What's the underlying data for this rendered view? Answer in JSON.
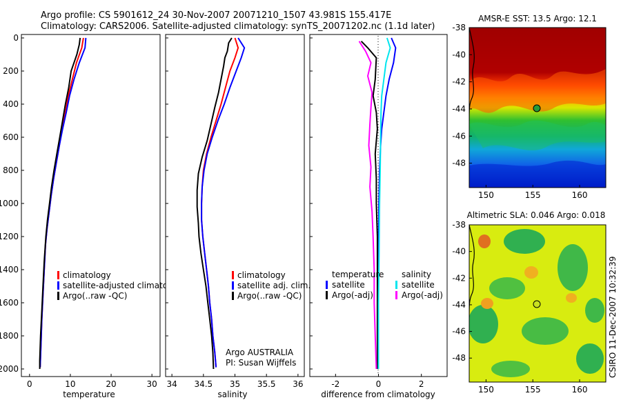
{
  "figure": {
    "title_line1": "Argo profile: CS 5901612_24 30-Nov-2007 20071210_1507 43.981S 155.417E",
    "title_line2": "Climatology: CARS2006. Satellite-adjusted climatology: synTS_20071202.nc (1.1d later)",
    "side_stamp": "CSIRO 11-Dec-2007 10:32:39"
  },
  "colors": {
    "climatology": "#ff0000",
    "satellite": "#0000ff",
    "argo": "#000000",
    "salinity_satellite": "#00e5ee",
    "salinity_argo": "#ff00ff"
  },
  "chart_data": [
    {
      "type": "line",
      "panel": "temperature",
      "xlabel": "temperature",
      "ylabel": "",
      "xlim": [
        -2,
        32
      ],
      "ylim": [
        2050,
        0
      ],
      "xticks": [
        0,
        10,
        20,
        30
      ],
      "yticks": [
        0,
        200,
        400,
        600,
        800,
        1000,
        1200,
        1400,
        1600,
        1800,
        2000
      ],
      "legend": [
        "climatology",
        "satellite-adjusted climatology",
        "Argo(..raw -QC)"
      ],
      "series": [
        {
          "name": "climatology",
          "color": "#ff0000",
          "points": [
            [
              13.2,
              0
            ],
            [
              12.8,
              60
            ],
            [
              11.5,
              150
            ],
            [
              10.5,
              250
            ],
            [
              9.5,
              350
            ],
            [
              8.8,
              450
            ],
            [
              8.0,
              550
            ],
            [
              7.3,
              650
            ],
            [
              6.6,
              750
            ],
            [
              5.9,
              850
            ],
            [
              5.3,
              950
            ],
            [
              4.8,
              1050
            ],
            [
              4.3,
              1150
            ],
            [
              3.9,
              1250
            ],
            [
              3.6,
              1400
            ],
            [
              3.3,
              1550
            ],
            [
              3.0,
              1700
            ],
            [
              2.8,
              1850
            ],
            [
              2.6,
              1990
            ]
          ]
        },
        {
          "name": "satellite-adjusted climatology",
          "color": "#0000ff",
          "points": [
            [
              13.8,
              0
            ],
            [
              13.6,
              60
            ],
            [
              12.2,
              150
            ],
            [
              10.9,
              250
            ],
            [
              9.8,
              350
            ],
            [
              9.0,
              450
            ],
            [
              8.1,
              550
            ],
            [
              7.3,
              650
            ],
            [
              6.6,
              750
            ],
            [
              5.9,
              850
            ],
            [
              5.3,
              950
            ],
            [
              4.8,
              1050
            ],
            [
              4.3,
              1150
            ],
            [
              3.9,
              1250
            ],
            [
              3.6,
              1400
            ],
            [
              3.3,
              1550
            ],
            [
              3.0,
              1700
            ],
            [
              2.8,
              1850
            ],
            [
              2.6,
              1990
            ]
          ]
        },
        {
          "name": "Argo(..raw -QC)",
          "color": "#000000",
          "points": [
            [
              12.4,
              0
            ],
            [
              12.2,
              40
            ],
            [
              11.6,
              100
            ],
            [
              10.2,
              200
            ],
            [
              9.6,
              300
            ],
            [
              8.8,
              400
            ],
            [
              8.1,
              500
            ],
            [
              7.4,
              600
            ],
            [
              6.7,
              700
            ],
            [
              6.0,
              800
            ],
            [
              5.4,
              900
            ],
            [
              4.9,
              1000
            ],
            [
              4.4,
              1100
            ],
            [
              4.0,
              1200
            ],
            [
              3.6,
              1350
            ],
            [
              3.3,
              1500
            ],
            [
              3.0,
              1650
            ],
            [
              2.7,
              1800
            ],
            [
              2.5,
              1950
            ],
            [
              2.5,
              2000
            ]
          ]
        }
      ]
    },
    {
      "type": "line",
      "panel": "salinity",
      "xlabel": "salinity",
      "xlim": [
        33.9,
        36.1
      ],
      "ylim": [
        2050,
        0
      ],
      "xticks": [
        34,
        34.5,
        35,
        35.5,
        36
      ],
      "legend": [
        "climatology",
        "satellite adj. clim.",
        "Argo(..raw -QC)"
      ],
      "annotation": [
        "Argo AUSTRALIA",
        "PI: Susan Wijffels"
      ],
      "series": [
        {
          "name": "climatology",
          "color": "#ff0000",
          "points": [
            [
              35.0,
              0
            ],
            [
              35.05,
              60
            ],
            [
              35.0,
              120
            ],
            [
              34.92,
              200
            ],
            [
              34.85,
              300
            ],
            [
              34.78,
              400
            ],
            [
              34.7,
              500
            ],
            [
              34.62,
              600
            ],
            [
              34.55,
              700
            ],
            [
              34.5,
              800
            ],
            [
              34.48,
              900
            ],
            [
              34.47,
              1000
            ],
            [
              34.47,
              1100
            ],
            [
              34.49,
              1200
            ],
            [
              34.52,
              1300
            ],
            [
              34.55,
              1400
            ],
            [
              34.58,
              1500
            ],
            [
              34.6,
              1600
            ],
            [
              34.63,
              1700
            ],
            [
              34.65,
              1800
            ],
            [
              34.68,
              1900
            ],
            [
              34.7,
              1990
            ]
          ]
        },
        {
          "name": "satellite adj. clim.",
          "color": "#0000ff",
          "points": [
            [
              35.05,
              0
            ],
            [
              35.15,
              60
            ],
            [
              35.1,
              120
            ],
            [
              35.02,
              200
            ],
            [
              34.92,
              300
            ],
            [
              34.83,
              400
            ],
            [
              34.73,
              500
            ],
            [
              34.64,
              600
            ],
            [
              34.56,
              700
            ],
            [
              34.51,
              800
            ],
            [
              34.48,
              900
            ],
            [
              34.47,
              1000
            ],
            [
              34.47,
              1100
            ],
            [
              34.49,
              1200
            ],
            [
              34.52,
              1300
            ],
            [
              34.55,
              1400
            ],
            [
              34.58,
              1500
            ],
            [
              34.6,
              1600
            ],
            [
              34.63,
              1700
            ],
            [
              34.65,
              1800
            ],
            [
              34.68,
              1900
            ],
            [
              34.7,
              1990
            ]
          ]
        },
        {
          "name": "Argo(..raw -QC)",
          "color": "#000000",
          "points": [
            [
              34.95,
              0
            ],
            [
              34.9,
              30
            ],
            [
              34.88,
              80
            ],
            [
              34.84,
              120
            ],
            [
              34.82,
              170
            ],
            [
              34.78,
              250
            ],
            [
              34.74,
              330
            ],
            [
              34.68,
              420
            ],
            [
              34.62,
              520
            ],
            [
              34.56,
              620
            ],
            [
              34.48,
              720
            ],
            [
              34.42,
              820
            ],
            [
              34.4,
              920
            ],
            [
              34.4,
              1020
            ],
            [
              34.42,
              1120
            ],
            [
              34.43,
              1200
            ],
            [
              34.46,
              1300
            ],
            [
              34.5,
              1400
            ],
            [
              34.54,
              1500
            ],
            [
              34.57,
              1600
            ],
            [
              34.6,
              1700
            ],
            [
              34.63,
              1800
            ],
            [
              34.65,
              1900
            ],
            [
              34.66,
              2000
            ]
          ]
        }
      ]
    },
    {
      "type": "line",
      "panel": "difference",
      "xlabel": "difference from climatology",
      "xlim": [
        -3.2,
        3.2
      ],
      "ylim": [
        2050,
        0
      ],
      "xticks": [
        -2,
        0,
        2
      ],
      "legend_headers": [
        "temperature",
        "salinity"
      ],
      "legend": [
        "satellite",
        "Argo(-adj)",
        "satellite",
        "Argo(-adj)"
      ],
      "series": [
        {
          "name": "temperature satellite",
          "color": "#0000ff",
          "points": [
            [
              0.6,
              0
            ],
            [
              0.8,
              60
            ],
            [
              0.7,
              150
            ],
            [
              0.5,
              250
            ],
            [
              0.35,
              350
            ],
            [
              0.25,
              450
            ],
            [
              0.15,
              550
            ],
            [
              0.1,
              650
            ],
            [
              0.05,
              800
            ],
            [
              0.02,
              1000
            ],
            [
              0.0,
              1300
            ],
            [
              0.0,
              1600
            ],
            [
              0.0,
              2000
            ]
          ]
        },
        {
          "name": "temperature Argo(-adj)",
          "color": "#000000",
          "points": [
            [
              -0.8,
              20
            ],
            [
              -0.5,
              60
            ],
            [
              -0.1,
              120
            ],
            [
              -0.15,
              250
            ],
            [
              -0.25,
              350
            ],
            [
              -0.1,
              450
            ],
            [
              -0.05,
              550
            ],
            [
              -0.15,
              700
            ],
            [
              -0.1,
              850
            ],
            [
              -0.1,
              1000
            ],
            [
              -0.05,
              1200
            ],
            [
              -0.05,
              1500
            ],
            [
              -0.05,
              1800
            ],
            [
              -0.05,
              2000
            ]
          ]
        },
        {
          "name": "salinity satellite",
          "color": "#00e5ee",
          "points": [
            [
              0.4,
              0
            ],
            [
              0.55,
              60
            ],
            [
              0.35,
              150
            ],
            [
              0.25,
              250
            ],
            [
              0.15,
              350
            ],
            [
              0.12,
              450
            ],
            [
              0.1,
              600
            ],
            [
              0.08,
              800
            ],
            [
              0.05,
              1000
            ],
            [
              0.03,
              1300
            ],
            [
              0.0,
              1600
            ],
            [
              0.0,
              2000
            ]
          ]
        },
        {
          "name": "salinity Argo(-adj)",
          "color": "#ff00ff",
          "points": [
            [
              -0.9,
              20
            ],
            [
              -0.6,
              80
            ],
            [
              -0.35,
              150
            ],
            [
              -0.5,
              230
            ],
            [
              -0.3,
              330
            ],
            [
              -0.35,
              420
            ],
            [
              -0.4,
              520
            ],
            [
              -0.45,
              650
            ],
            [
              -0.35,
              780
            ],
            [
              -0.4,
              900
            ],
            [
              -0.3,
              1050
            ],
            [
              -0.25,
              1200
            ],
            [
              -0.2,
              1400
            ],
            [
              -0.2,
              1600
            ],
            [
              -0.15,
              1800
            ],
            [
              -0.1,
              2000
            ]
          ]
        }
      ]
    },
    {
      "type": "heatmap",
      "panel": "sst_map",
      "title": "AMSR-E SST: 13.5 Argo: 12.1",
      "xlim": [
        148.2,
        162.8
      ],
      "ylim": [
        -49.8,
        -38
      ],
      "xticks": [
        150,
        155,
        160
      ],
      "yticks": [
        -38,
        -40,
        -42,
        -44,
        -46,
        -48
      ],
      "marker": [
        155.417,
        -43.981
      ]
    },
    {
      "type": "heatmap",
      "panel": "sla_map",
      "title": "Altimetric SLA: 0.046 Argo: 0.018",
      "xlim": [
        148.2,
        162.8
      ],
      "ylim": [
        -49.8,
        -38
      ],
      "xticks": [
        150,
        155,
        160
      ],
      "yticks": [
        -38,
        -40,
        -42,
        -44,
        -46,
        -48
      ],
      "marker": [
        155.417,
        -43.981
      ]
    }
  ]
}
